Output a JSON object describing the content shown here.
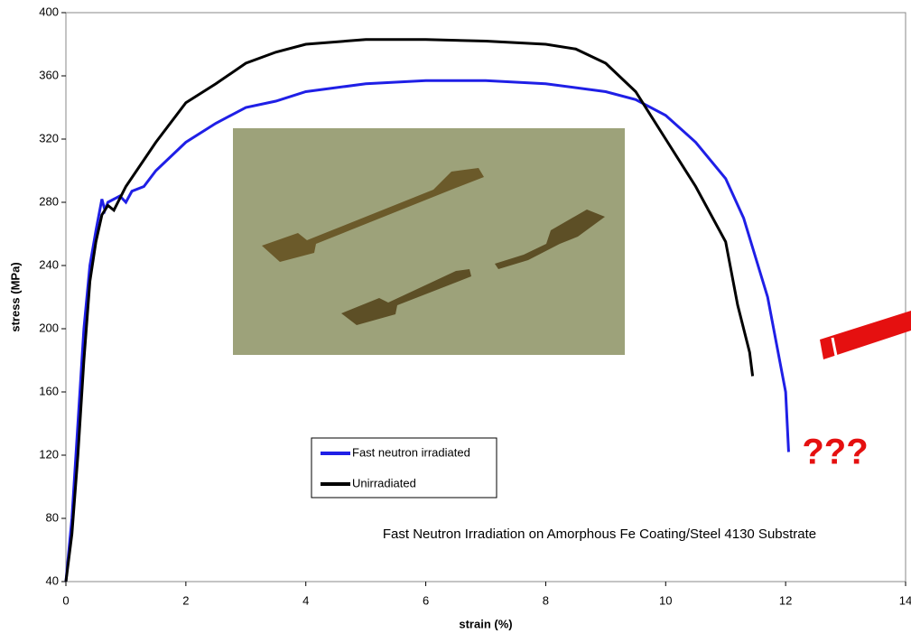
{
  "chart_data": {
    "type": "line",
    "xlabel": "strain (%)",
    "ylabel": "stress (MPa)",
    "annotation": "Fast Neutron Irradiation on Amorphous Fe Coating/Steel 4130 Substrate",
    "mark": "???",
    "xlim": [
      0,
      14
    ],
    "xticks": [
      0,
      2,
      4,
      6,
      8,
      10,
      12,
      14
    ],
    "ylim": [
      40,
      400
    ],
    "yticks": [
      40,
      80,
      120,
      160,
      200,
      240,
      280,
      320,
      360,
      400
    ],
    "series": [
      {
        "name": "Fast neutron irradiated",
        "color": "#1f1fe6",
        "x": [
          0,
          0.1,
          0.2,
          0.3,
          0.4,
          0.5,
          0.6,
          0.65,
          0.7,
          0.8,
          0.9,
          1.0,
          1.1,
          1.3,
          1.5,
          2,
          2.5,
          3,
          3.5,
          4,
          5,
          6,
          7,
          8,
          9,
          9.5,
          10,
          10.5,
          11,
          11.3,
          11.5,
          11.7,
          11.85,
          12,
          12.05
        ],
        "values": [
          40,
          80,
          140,
          200,
          240,
          262,
          282,
          275,
          280,
          282,
          284,
          280,
          287,
          290,
          300,
          318,
          330,
          340,
          344,
          350,
          355,
          357,
          357,
          355,
          350,
          345,
          335,
          318,
          295,
          270,
          245,
          220,
          190,
          160,
          122
        ]
      },
      {
        "name": "Unirradiated",
        "color": "#000000",
        "x": [
          0,
          0.1,
          0.2,
          0.3,
          0.4,
          0.5,
          0.6,
          0.7,
          0.8,
          1,
          1.5,
          2,
          2.5,
          3,
          3.5,
          4,
          5,
          6,
          7,
          8,
          8.5,
          9,
          9.5,
          10,
          10.5,
          11,
          11.2,
          11.4,
          11.45
        ],
        "values": [
          40,
          70,
          120,
          180,
          230,
          255,
          272,
          278,
          275,
          290,
          318,
          343,
          355,
          368,
          375,
          380,
          383,
          383,
          382,
          380,
          377,
          368,
          350,
          320,
          290,
          255,
          215,
          185,
          170
        ]
      }
    ]
  }
}
